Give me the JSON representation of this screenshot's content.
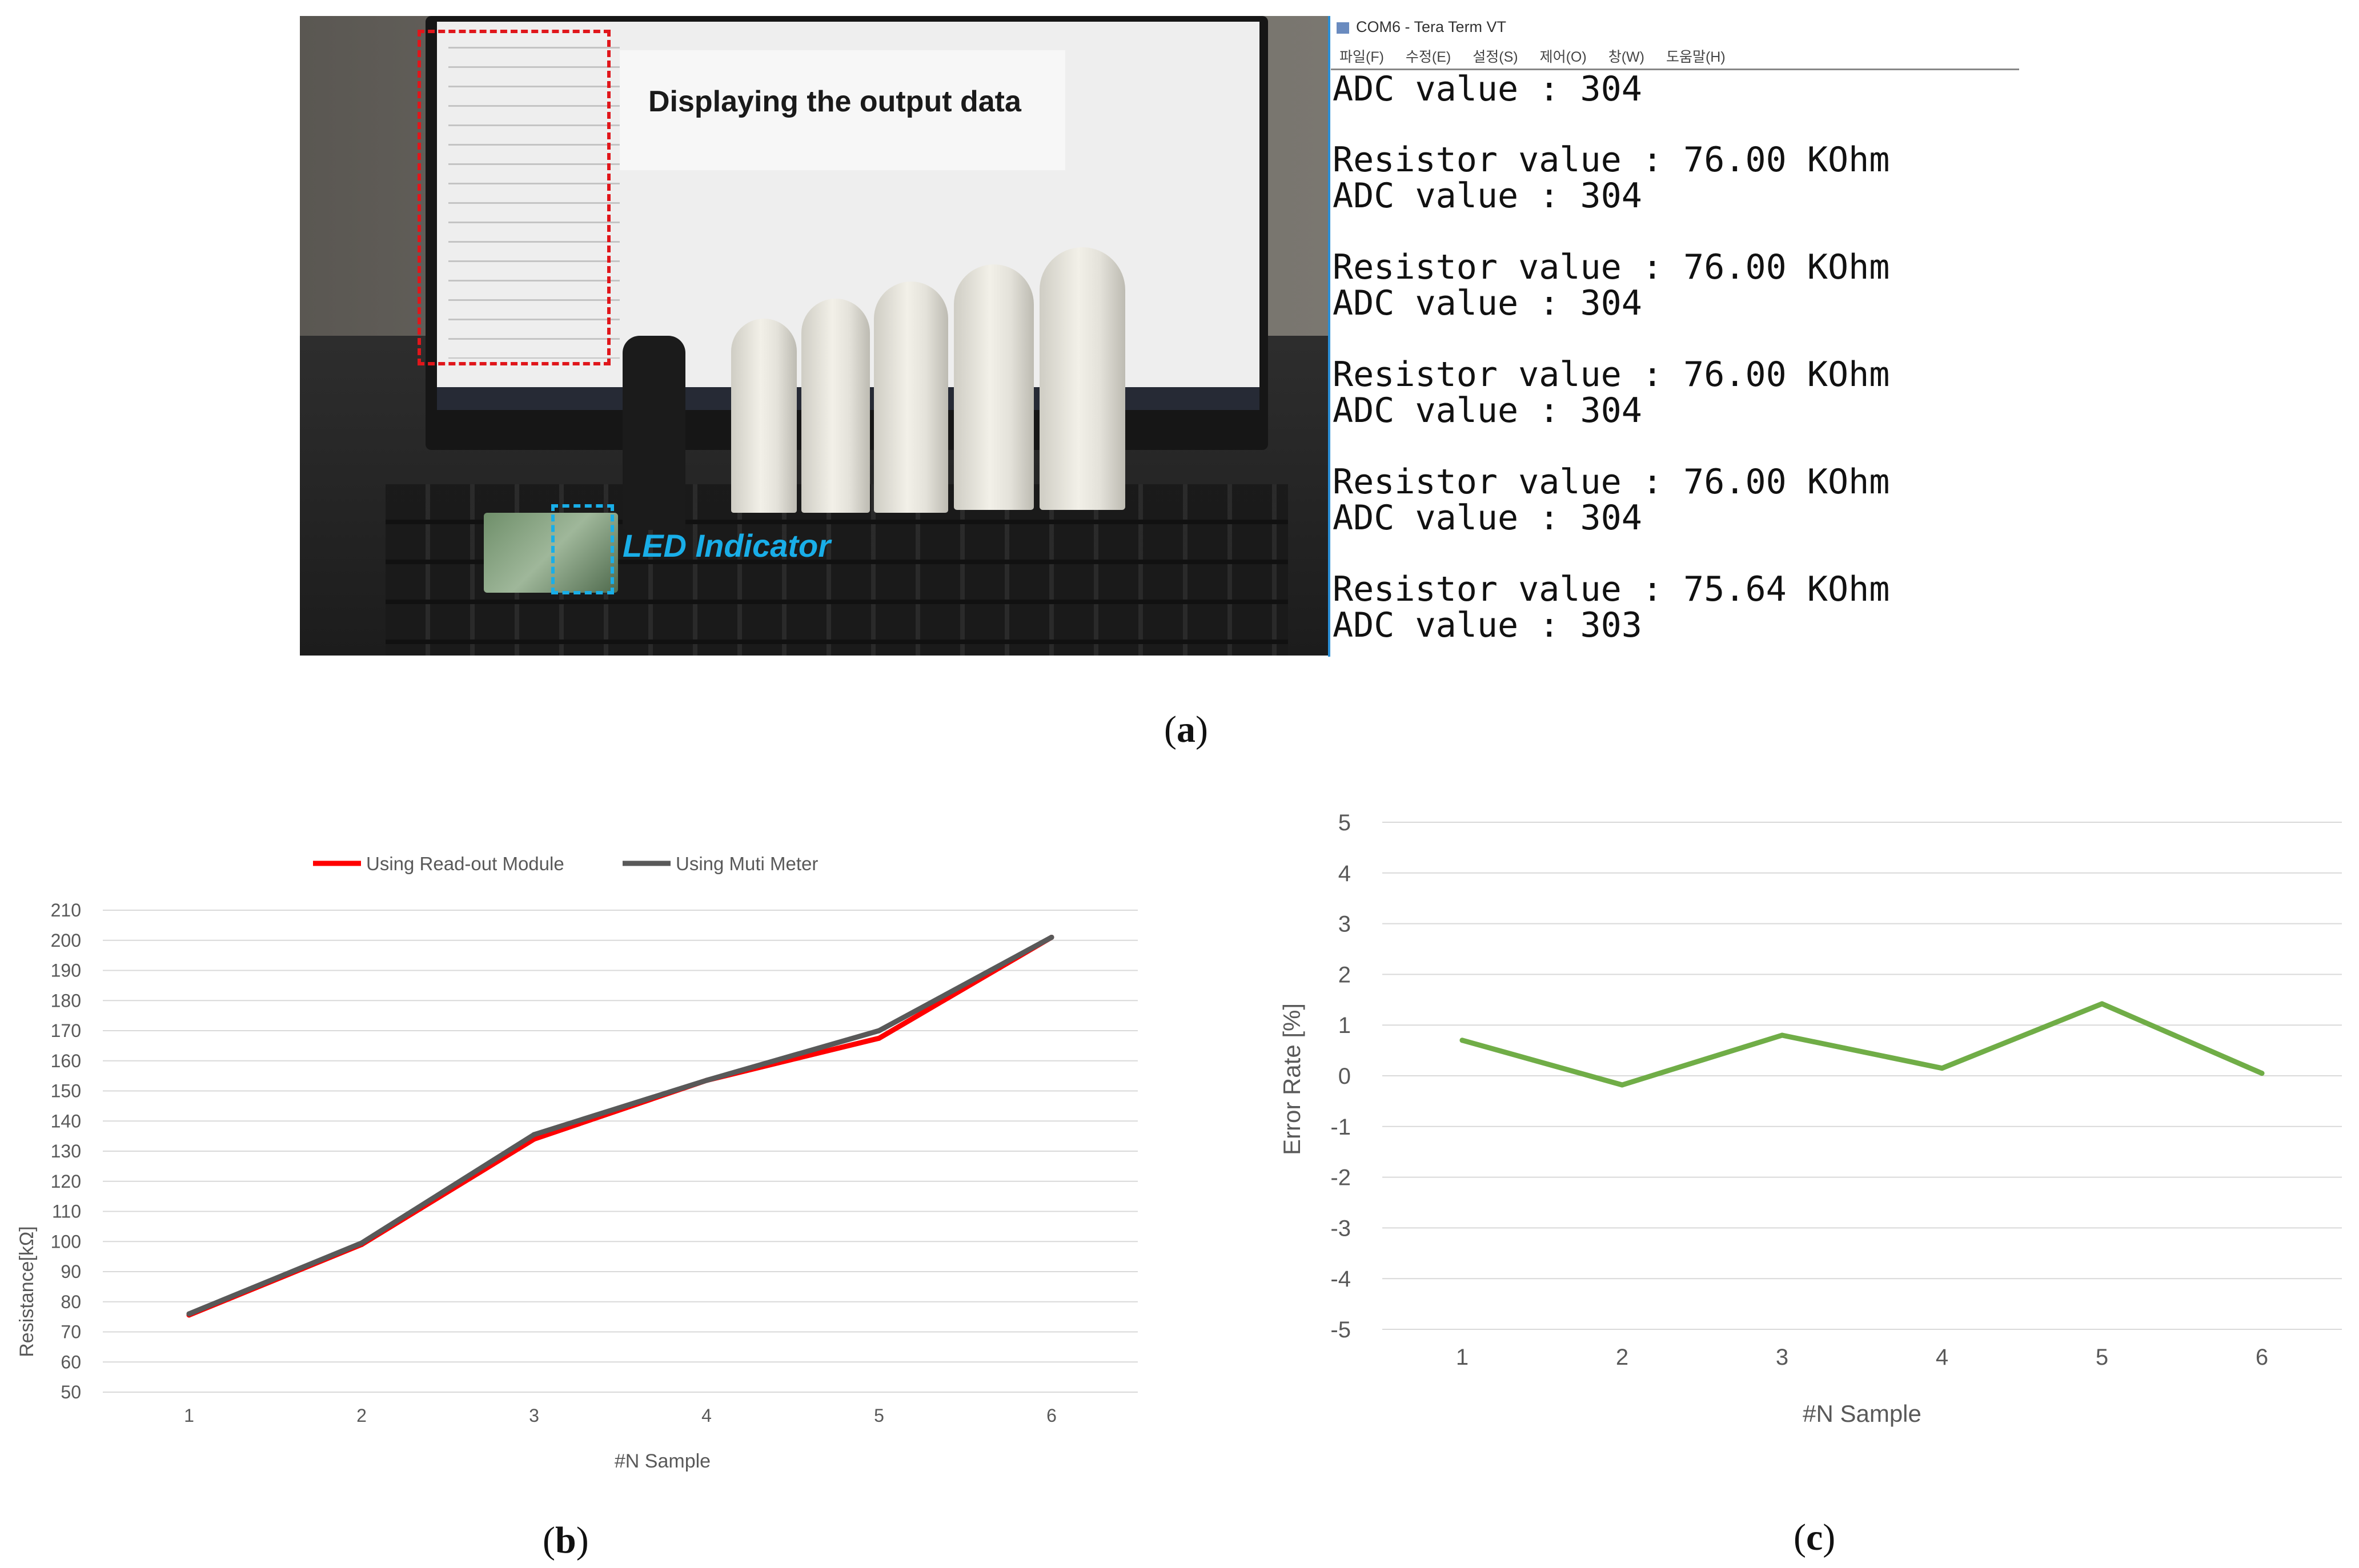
{
  "panel_a": {
    "photo_label": "Displaying the output data",
    "led_label": "LED Indicator",
    "terminal": {
      "title": "COM6 - Tera Term VT",
      "menu": [
        "파일(F)",
        "수정(E)",
        "설정(S)",
        "제어(O)",
        "창(W)",
        "도움말(H)"
      ],
      "lines": [
        "ADC value : 304",
        "",
        "Resistor value : 76.00 KOhm",
        "ADC value : 304",
        "",
        "Resistor value : 76.00 KOhm",
        "ADC value : 304",
        "",
        "Resistor value : 76.00 KOhm",
        "ADC value : 304",
        "",
        "Resistor value : 76.00 KOhm",
        "ADC value : 304",
        "",
        "Resistor value : 75.64 KOhm",
        "ADC value : 303"
      ]
    },
    "caption_open": "(",
    "caption_letter": "a",
    "caption_close": ")"
  },
  "panel_b": {
    "caption_open": "(",
    "caption_letter": "b",
    "caption_close": ")"
  },
  "panel_c": {
    "caption_open": "(",
    "caption_letter": "c",
    "caption_close": ")"
  },
  "chart_data": [
    {
      "type": "line",
      "x": [
        1,
        2,
        3,
        4,
        5,
        6
      ],
      "series": [
        {
          "name": "Using Read-out Module",
          "values": [
            75.6,
            99,
            134,
            153.5,
            167.5,
            201
          ],
          "color": "#ff0000"
        },
        {
          "name": "Using Muti Meter",
          "values": [
            76,
            99.5,
            135.5,
            153.5,
            170,
            201
          ],
          "color": "#595959"
        }
      ],
      "xlabel": "#N Sample",
      "ylabel": "Resistance[kΩ]",
      "ylim": [
        50,
        210
      ],
      "yticks": [
        50,
        60,
        70,
        80,
        90,
        100,
        110,
        120,
        130,
        140,
        150,
        160,
        170,
        180,
        190,
        200,
        210
      ],
      "grid": "horizontal",
      "legend": "top-center"
    },
    {
      "type": "line",
      "x": [
        1,
        2,
        3,
        4,
        5,
        6
      ],
      "series": [
        {
          "values": [
            0.7,
            -0.18,
            0.8,
            0.15,
            1.42,
            0.05
          ],
          "color": "#70ad47"
        }
      ],
      "xlabel": "#N Sample",
      "ylabel": "Error Rate [%]",
      "ylim": [
        -5,
        5
      ],
      "yticks": [
        -5,
        -4,
        -3,
        -2,
        -1,
        0,
        1,
        2,
        3,
        4,
        5
      ],
      "grid": "horizontal"
    }
  ]
}
